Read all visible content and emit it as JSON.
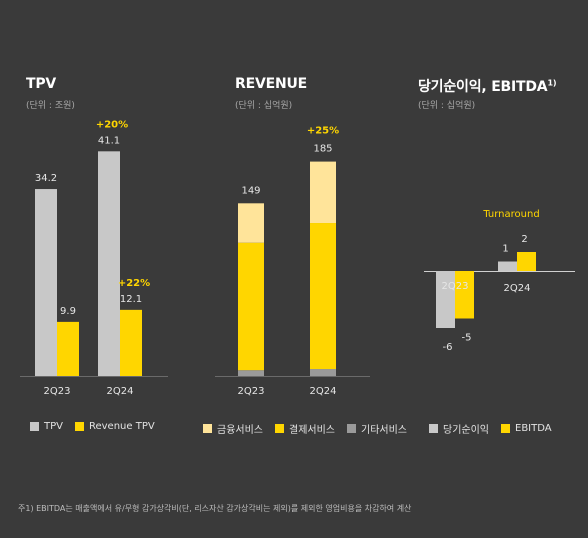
{
  "colors": {
    "background": "#3a3a3a",
    "tpv": "#c8c8c8",
    "revenue_tpv": "#ffd600",
    "financial": "#ffe49a",
    "payment": "#ffd600",
    "other": "#9a9a9a",
    "net_income": "#c8c8c8",
    "ebitda": "#ffd600",
    "growth_label": "#ffd600"
  },
  "footnote": "주1) EBITDA는 매출액에서 유/무형 감가상각비(단, 리스자산 감가상각비는 제외)를 제외한 영업비용을 차감하여 계산",
  "chart_data": [
    {
      "type": "bar",
      "title": "TPV",
      "subtitle": "(단위 : 조원)",
      "categories": [
        "2Q23",
        "2Q24"
      ],
      "series": [
        {
          "name": "TPV",
          "values": [
            34.2,
            41.1
          ],
          "labels": [
            "34.2",
            "41.1"
          ]
        },
        {
          "name": "Revenue TPV",
          "values": [
            9.9,
            12.1
          ],
          "labels": [
            "9.9",
            "12.1"
          ]
        }
      ],
      "annotations": [
        {
          "series": "TPV",
          "category": "2Q24",
          "text": "+20%"
        },
        {
          "series": "Revenue TPV",
          "category": "2Q24",
          "text": "+22%"
        }
      ],
      "ylim": [
        0,
        45
      ],
      "legend": "bottom-left",
      "grid": false
    },
    {
      "type": "bar",
      "stacked": true,
      "title": "REVENUE",
      "subtitle": "(단위 : 십억원)",
      "categories": [
        "2Q23",
        "2Q24"
      ],
      "series": [
        {
          "name": "기타서비스",
          "values": [
            5,
            6
          ]
        },
        {
          "name": "결제서비스",
          "values": [
            110,
            126
          ]
        },
        {
          "name": "금융서비스",
          "values": [
            34,
            53
          ]
        }
      ],
      "totals": [
        149,
        185
      ],
      "total_labels": [
        "149",
        "185"
      ],
      "annotations": [
        {
          "category": "2Q24",
          "text": "+25%"
        }
      ],
      "legend_order": [
        "금융서비스",
        "결제서비스",
        "기타서비스"
      ],
      "ylim": [
        0,
        195
      ],
      "legend": "bottom-left",
      "grid": false
    },
    {
      "type": "bar",
      "title": "당기순이익, EBITDA",
      "title_sup": "1)",
      "subtitle": "(단위 : 십억원)",
      "categories": [
        "2Q23",
        "2Q24"
      ],
      "series": [
        {
          "name": "당기순이익",
          "values": [
            -6,
            1
          ],
          "labels": [
            "-6",
            "1"
          ]
        },
        {
          "name": "EBITDA",
          "values": [
            -5,
            2
          ],
          "labels": [
            "-5",
            "2"
          ]
        }
      ],
      "annotations": [
        {
          "category": "2Q24",
          "text": "Turnaround"
        }
      ],
      "ylim": [
        -7,
        3
      ],
      "legend": "bottom-left",
      "grid": false
    }
  ]
}
